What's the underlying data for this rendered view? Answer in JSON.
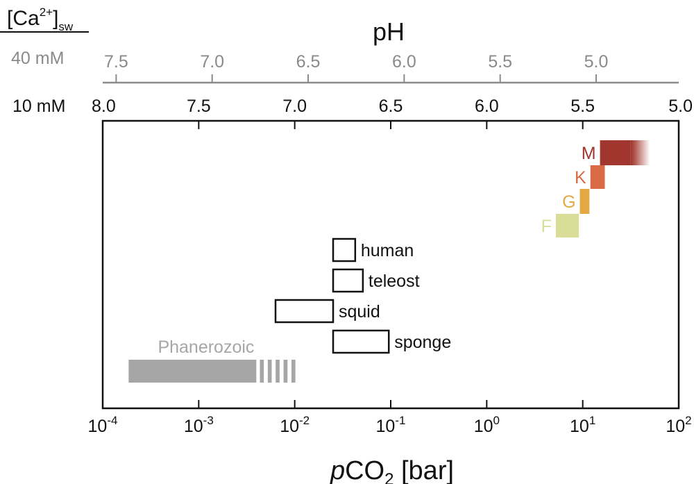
{
  "chart_data": {
    "type": "range",
    "ca_label": {
      "base": "[Ca",
      "sup": "2+",
      "close": "]",
      "sub": "sw"
    },
    "top_axis": {
      "title": "pH",
      "rows": [
        {
          "label": "40 mM",
          "ticks": [
            "7.5",
            "7.0",
            "6.5",
            "6.0",
            "5.5",
            "5.0"
          ],
          "values": [
            7.5,
            7.0,
            6.5,
            6.0,
            5.5,
            5.0
          ],
          "log10_pco2_at": [
            -3.86,
            -2.86,
            -1.86,
            -0.86,
            0.14,
            1.14
          ]
        },
        {
          "label": "10 mM",
          "ticks": [
            "8.0",
            "7.5",
            "7.0",
            "6.5",
            "6.0",
            "5.5",
            "5.0"
          ],
          "values": [
            8.0,
            7.5,
            7.0,
            6.5,
            6.0,
            5.5,
            5.0
          ],
          "log10_pco2_at": [
            -4.0,
            -3.0,
            -2.0,
            -1.0,
            0.0,
            1.0,
            2.0
          ]
        }
      ]
    },
    "x_axis": {
      "title_italic": "p",
      "title_main": "CO",
      "title_sub": "2",
      "title_unit": " [bar]",
      "scale": "log",
      "range_log10": [
        -4,
        2
      ],
      "ticks": [
        {
          "base": "10",
          "exp": "-4"
        },
        {
          "base": "10",
          "exp": "-3"
        },
        {
          "base": "10",
          "exp": "-2"
        },
        {
          "base": "10",
          "exp": "-1"
        },
        {
          "base": "10",
          "exp": "0"
        },
        {
          "base": "10",
          "exp": "1"
        },
        {
          "base": "10",
          "exp": "2"
        }
      ]
    },
    "ranges": [
      {
        "label": "M",
        "start": 1.18,
        "end": 1.5,
        "fade_to": 1.7,
        "color": "#a0362d",
        "style": "filled"
      },
      {
        "label": "K",
        "start": 1.08,
        "end": 1.23,
        "color": "#d96a43",
        "style": "filled"
      },
      {
        "label": "G",
        "start": 0.97,
        "end": 1.07,
        "color": "#e4a843",
        "style": "filled"
      },
      {
        "label": "F",
        "start": 0.72,
        "end": 0.96,
        "color": "#d9dd97",
        "style": "filled"
      },
      {
        "label": "human",
        "start": -1.6,
        "end": -1.37,
        "color": "#111111",
        "style": "outline"
      },
      {
        "label": "teleost",
        "start": -1.6,
        "end": -1.29,
        "color": "#111111",
        "style": "outline"
      },
      {
        "label": "squid",
        "start": -2.2,
        "end": -1.6,
        "color": "#111111",
        "style": "outline"
      },
      {
        "label": "sponge",
        "start": -1.6,
        "end": -1.02,
        "color": "#111111",
        "style": "outline"
      },
      {
        "label": "Phanerozoic",
        "start": -3.73,
        "end": -2.4,
        "dashed_to": -2.03,
        "color": "#a6a6a6",
        "style": "filled"
      }
    ]
  }
}
